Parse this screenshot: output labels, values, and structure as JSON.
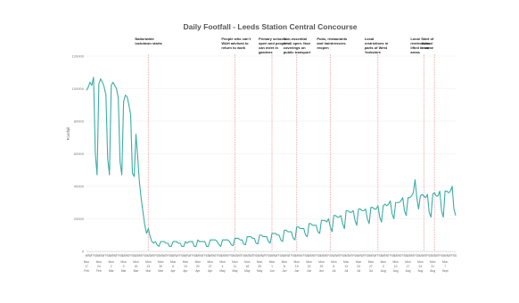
{
  "chart_data": {
    "type": "line",
    "title": "Daily Footfall - Leeds Station Central Concourse",
    "xlabel": "",
    "ylabel": "Footfall",
    "ylim": [
      0,
      120000
    ],
    "yticks": [
      0,
      20000,
      40000,
      60000,
      80000,
      100000,
      120000
    ],
    "ytick_labels": [
      "0",
      "20000",
      "40000",
      "60000",
      "80000",
      "100000",
      "120000"
    ],
    "x_range": [
      "2020-02-17",
      "2020-09-13"
    ],
    "grid": true,
    "legend": "none",
    "series_color": "#3aada4",
    "annotation_color": "#f0a8a8",
    "day_letters": [
      "M",
      "T",
      "W",
      "T",
      "F",
      "S",
      "S"
    ],
    "week_labels": [
      {
        "day": "Mon",
        "num": "17",
        "month": "Feb"
      },
      {
        "day": "Mon",
        "num": "24",
        "month": "Feb"
      },
      {
        "day": "Mon",
        "num": "2",
        "month": "Mar"
      },
      {
        "day": "Mon",
        "num": "9",
        "month": "Mar"
      },
      {
        "day": "Mon",
        "num": "16",
        "month": "Mar"
      },
      {
        "day": "Mon",
        "num": "23",
        "month": "Mar"
      },
      {
        "day": "Mon",
        "num": "30",
        "month": "Mar"
      },
      {
        "day": "Mon",
        "num": "6",
        "month": "Apr"
      },
      {
        "day": "Mon",
        "num": "13",
        "month": "Apr"
      },
      {
        "day": "Mon",
        "num": "20",
        "month": "Apr"
      },
      {
        "day": "Mon",
        "num": "27",
        "month": "Apr"
      },
      {
        "day": "Mon",
        "num": "4",
        "month": "May"
      },
      {
        "day": "Mon",
        "num": "11",
        "month": "May"
      },
      {
        "day": "Mon",
        "num": "18",
        "month": "May"
      },
      {
        "day": "Mon",
        "num": "25",
        "month": "May"
      },
      {
        "day": "Mon",
        "num": "1",
        "month": "Jun"
      },
      {
        "day": "Mon",
        "num": "8",
        "month": "Jun"
      },
      {
        "day": "Mon",
        "num": "15",
        "month": "Jun"
      },
      {
        "day": "Mon",
        "num": "22",
        "month": "Jun"
      },
      {
        "day": "Mon",
        "num": "29",
        "month": "Jun"
      },
      {
        "day": "Mon",
        "num": "6",
        "month": "Jul"
      },
      {
        "day": "Mon",
        "num": "13",
        "month": "Jul"
      },
      {
        "day": "Mon",
        "num": "20",
        "month": "Jul"
      },
      {
        "day": "Mon",
        "num": "27",
        "month": "Jul"
      },
      {
        "day": "Mon",
        "num": "3",
        "month": "Aug"
      },
      {
        "day": "Mon",
        "num": "10",
        "month": "Aug"
      },
      {
        "day": "Mon",
        "num": "17",
        "month": "Aug"
      },
      {
        "day": "Mon",
        "num": "24",
        "month": "Aug"
      },
      {
        "day": "Mon",
        "num": "31",
        "month": "Aug"
      },
      {
        "day": "Mon",
        "num": "7",
        "month": "Sept"
      }
    ],
    "annotations": [
      {
        "date": "2020-03-23",
        "lines": [
          "Nationwide",
          "lockdown starts"
        ]
      },
      {
        "date": "2020-05-11",
        "lines": [
          "People who can't",
          "WAH advised to",
          "return to work"
        ]
      },
      {
        "date": "2020-06-01",
        "lines": [
          "Primary schools",
          "open and people",
          "can meet in",
          "gardens"
        ]
      },
      {
        "date": "2020-06-15",
        "lines": [
          "Non-essential",
          "retail open. face",
          "coverings on",
          "public transport"
        ]
      },
      {
        "date": "2020-07-04",
        "lines": [
          "Pubs, restaurants",
          "and hairdressers",
          "reopen"
        ]
      },
      {
        "date": "2020-07-31",
        "lines": [
          "Local",
          "restrictions in",
          "parts of West",
          "Yorkshire"
        ]
      },
      {
        "date": "2020-08-26",
        "lines": [
          "Local",
          "restrictions",
          "lifted in some",
          "areas"
        ]
      },
      {
        "date": "2020-09-01",
        "lines": [
          "Start of",
          "school",
          "term"
        ]
      }
    ],
    "series": [
      {
        "start": "2020-02-17",
        "values": [
          99000,
          101000,
          104000,
          102000,
          107000,
          60000,
          47000,
          103000,
          106000,
          104000,
          101000,
          96000,
          57000,
          47000,
          102000,
          104000,
          102000,
          100000,
          94000,
          55000,
          47000,
          92000,
          96000,
          95000,
          90000,
          84000,
          48000,
          46000,
          72000,
          58000,
          42000,
          32000,
          24000,
          16000,
          11000,
          14000,
          9000,
          6000,
          5000,
          6000,
          4000,
          3000,
          6000,
          6000,
          6000,
          5000,
          5000,
          3000,
          3000,
          6000,
          6000,
          6000,
          5000,
          5000,
          3000,
          3000,
          6000,
          5000,
          6000,
          6000,
          6000,
          3000,
          3000,
          7000,
          6000,
          6000,
          6000,
          6000,
          3000,
          3000,
          7000,
          7000,
          7000,
          7000,
          6000,
          4000,
          3000,
          7000,
          7000,
          7000,
          7000,
          6000,
          4000,
          3500,
          8000,
          8000,
          8000,
          7000,
          7000,
          4500,
          4000,
          9000,
          9000,
          9000,
          8000,
          8000,
          5000,
          4500,
          10000,
          10000,
          9000,
          9000,
          9000,
          6000,
          5000,
          11000,
          11000,
          11000,
          10000,
          10000,
          7000,
          6000,
          13000,
          13000,
          12000,
          12000,
          12000,
          8000,
          7000,
          15000,
          15000,
          14000,
          14000,
          14000,
          10000,
          9000,
          17000,
          17000,
          16000,
          16000,
          16000,
          12000,
          11000,
          19000,
          19000,
          19000,
          18000,
          20000,
          15000,
          12000,
          22000,
          22000,
          21000,
          21000,
          22000,
          17000,
          14000,
          25000,
          25000,
          24000,
          24000,
          25000,
          19000,
          16000,
          26000,
          26000,
          25000,
          25000,
          26000,
          20000,
          17000,
          27000,
          27000,
          26000,
          26000,
          28000,
          21000,
          18000,
          28000,
          29000,
          28000,
          29000,
          31000,
          23000,
          20000,
          30000,
          30000,
          30000,
          31000,
          33000,
          25000,
          22000,
          33000,
          33000,
          34000,
          36000,
          44000,
          33000,
          26000,
          34000,
          35000,
          34000,
          33000,
          35000,
          24000,
          21000,
          35000,
          36000,
          34000,
          34000,
          37000,
          25000,
          21000,
          37000,
          37000,
          36000,
          37000,
          40000,
          26000,
          22000
        ]
      }
    ]
  }
}
